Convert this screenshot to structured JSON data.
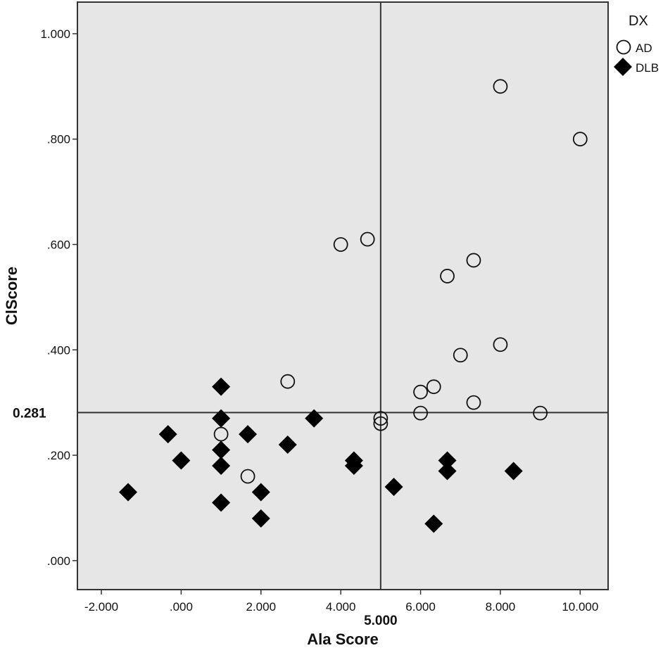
{
  "chart_data": {
    "type": "scatter",
    "xlabel": "Ala Score",
    "ylabel": "ClScore",
    "xlim": [
      -2.6,
      10.7
    ],
    "ylim": [
      -0.055,
      1.06
    ],
    "x_ticks": [
      -2,
      0,
      2,
      4,
      6,
      8,
      10
    ],
    "x_tick_labels": [
      "-2.000",
      ".000",
      "2.000",
      "4.000",
      "6.000",
      "8.000",
      "10.000"
    ],
    "y_ticks": [
      0,
      0.2,
      0.4,
      0.6,
      0.8,
      1.0
    ],
    "y_tick_labels": [
      ".000",
      ".200",
      ".400",
      ".600",
      ".800",
      "1.000"
    ],
    "reference_lines": {
      "x": {
        "value": 5.0,
        "label": "5.000"
      },
      "y": {
        "value": 0.281,
        "label": "0.281"
      }
    },
    "grid": false,
    "background": "#e6e6e6",
    "legend": {
      "title": "DX",
      "position": "top-right",
      "entries": [
        {
          "name": "AD",
          "marker": "open-circle"
        },
        {
          "name": "DLB",
          "marker": "filled-diamond"
        }
      ]
    },
    "series": [
      {
        "name": "AD",
        "marker": "open-circle",
        "x": [
          8.0,
          10.0,
          4.67,
          4.0,
          7.33,
          6.67,
          8.0,
          7.0,
          2.67,
          6.33,
          6.0,
          7.33,
          6.0,
          9.0,
          5.0,
          5.0,
          1.0,
          1.67
        ],
        "y": [
          0.9,
          0.8,
          0.61,
          0.6,
          0.57,
          0.54,
          0.41,
          0.39,
          0.34,
          0.33,
          0.32,
          0.3,
          0.28,
          0.28,
          0.27,
          0.26,
          0.24,
          0.16
        ]
      },
      {
        "name": "DLB",
        "marker": "filled-diamond",
        "x": [
          1.0,
          1.0,
          3.33,
          -0.33,
          1.67,
          2.67,
          1.0,
          0.0,
          1.0,
          4.33,
          4.33,
          6.67,
          6.67,
          8.33,
          5.33,
          -1.33,
          2.0,
          1.0,
          2.0,
          6.33
        ],
        "y": [
          0.33,
          0.27,
          0.27,
          0.24,
          0.24,
          0.22,
          0.21,
          0.19,
          0.18,
          0.19,
          0.18,
          0.19,
          0.17,
          0.17,
          0.14,
          0.13,
          0.13,
          0.11,
          0.08,
          0.07
        ]
      }
    ]
  }
}
